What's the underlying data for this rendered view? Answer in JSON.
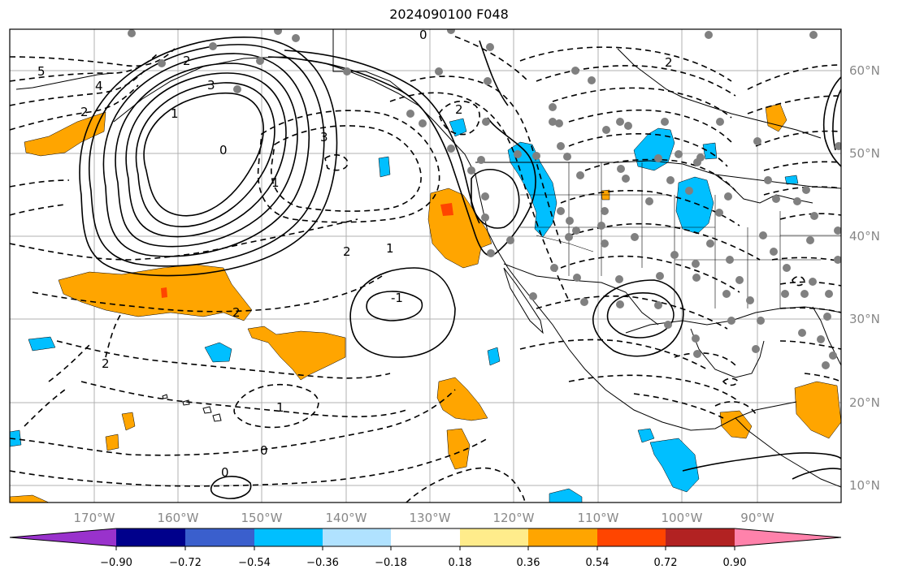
{
  "title": "2024090100 F048",
  "map": {
    "lon_labels": [
      "170°W",
      "160°W",
      "150°W",
      "140°W",
      "130°W",
      "120°W",
      "110°W",
      "100°W",
      "90°W"
    ],
    "lat_labels": [
      "60°N",
      "50°N",
      "40°N",
      "30°N",
      "20°N",
      "10°N"
    ],
    "contour_labels": [
      "5",
      "4",
      "2",
      "2",
      "1",
      "3",
      "3",
      "0",
      "2",
      "1",
      "2",
      "1",
      "2",
      "0",
      "2",
      "-1",
      "0",
      "2",
      "1",
      "0"
    ]
  },
  "colorbar": {
    "ticks": [
      "−0.90",
      "−0.72",
      "−0.54",
      "−0.36",
      "−0.18",
      "0.18",
      "0.36",
      "0.54",
      "0.72",
      "0.90"
    ],
    "colors": [
      "#9932cc",
      "#00008b",
      "#3a5fcd",
      "#00bfff",
      "#b0e2ff",
      "#ffffff",
      "#ffec8b",
      "#ffa500",
      "#ff4500",
      "#b22222",
      "#ff82ab"
    ]
  },
  "colors": {
    "positive_fill": "#ffa500",
    "negative_fill": "#00bfff",
    "grid": "#b0b0b0",
    "station": "#808080"
  }
}
